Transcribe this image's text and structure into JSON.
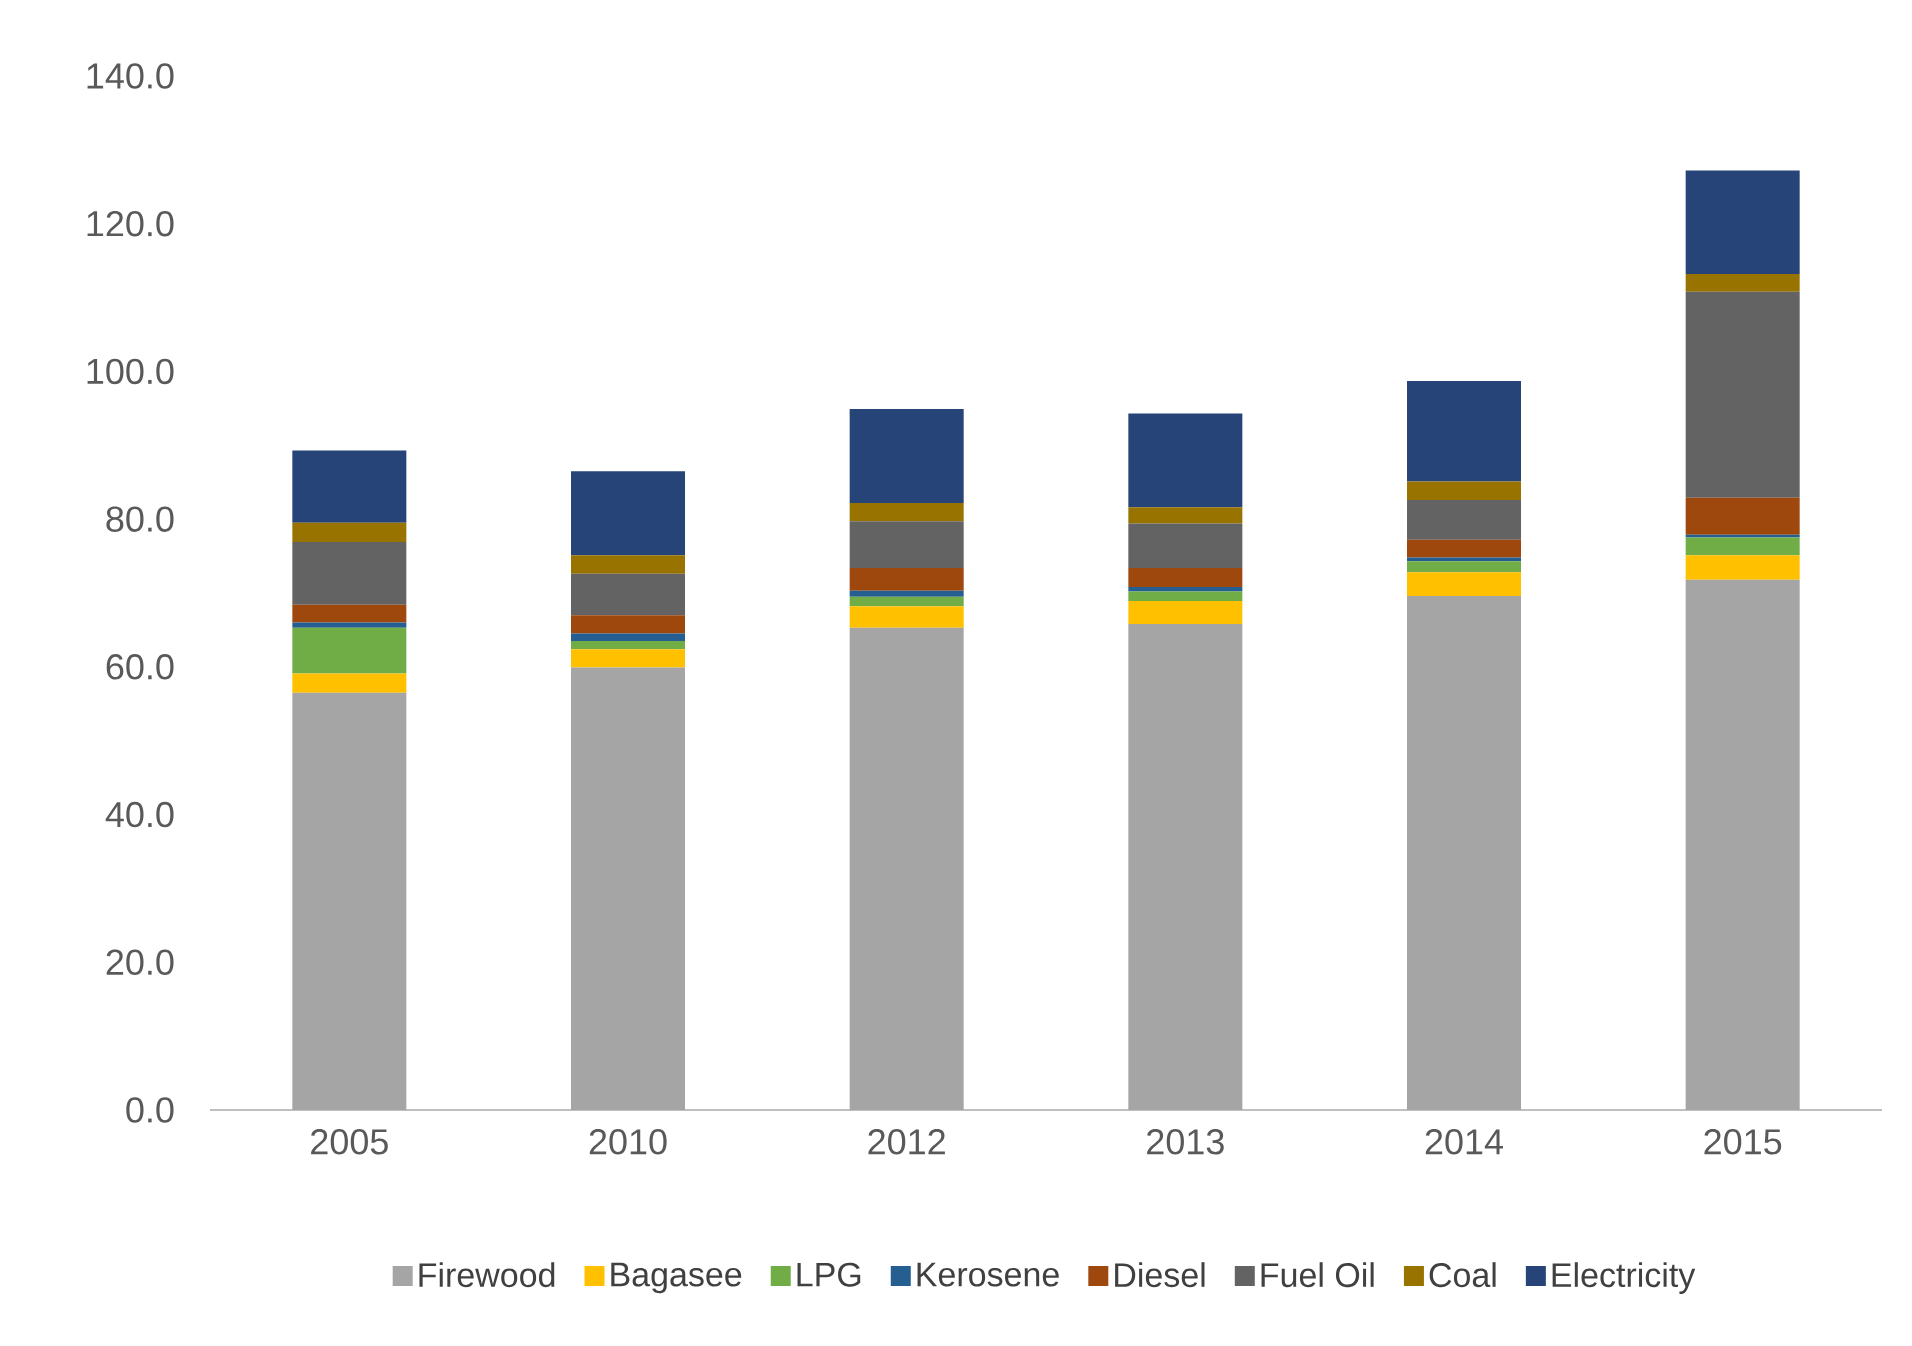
{
  "chart_data": {
    "type": "bar",
    "stacked": true,
    "categories": [
      "2005",
      "2010",
      "2012",
      "2013",
      "2014",
      "2015"
    ],
    "series": [
      {
        "name": "Firewood",
        "color": "#a5a5a5",
        "values": [
          56.5,
          59.9,
          65.3,
          65.8,
          69.6,
          71.8
        ]
      },
      {
        "name": "Bagasee",
        "color": "#ffc000",
        "values": [
          2.6,
          2.5,
          2.9,
          3.1,
          3.2,
          3.3
        ]
      },
      {
        "name": "LPG",
        "color": "#70ad47",
        "values": [
          6.2,
          1.1,
          1.3,
          1.3,
          1.5,
          2.4
        ]
      },
      {
        "name": "Kerosene",
        "color": "#255e91",
        "values": [
          0.7,
          1.0,
          0.8,
          0.6,
          0.5,
          0.4
        ]
      },
      {
        "name": "Diesel",
        "color": "#9e480e",
        "values": [
          2.4,
          2.5,
          3.1,
          2.6,
          2.4,
          5.0
        ]
      },
      {
        "name": "Fuel Oil",
        "color": "#636363",
        "values": [
          8.5,
          5.6,
          6.3,
          6.0,
          5.4,
          27.9
        ]
      },
      {
        "name": "Coal",
        "color": "#997300",
        "values": [
          2.6,
          2.5,
          2.5,
          2.2,
          2.5,
          2.4
        ]
      },
      {
        "name": "Electricity",
        "color": "#264478",
        "values": [
          9.8,
          11.4,
          12.7,
          12.7,
          13.6,
          14.0
        ]
      }
    ],
    "ylim": [
      0,
      140
    ],
    "yticks": [
      {
        "value": 0,
        "label": "0.0"
      },
      {
        "value": 20,
        "label": "20.0"
      },
      {
        "value": 40,
        "label": "40.0"
      },
      {
        "value": 60,
        "label": "60.0"
      },
      {
        "value": 80,
        "label": "80.0"
      },
      {
        "value": 100,
        "label": "100.0"
      },
      {
        "value": 120,
        "label": "120.0"
      },
      {
        "value": 140,
        "label": "140.0"
      }
    ],
    "legend": "bottom"
  }
}
